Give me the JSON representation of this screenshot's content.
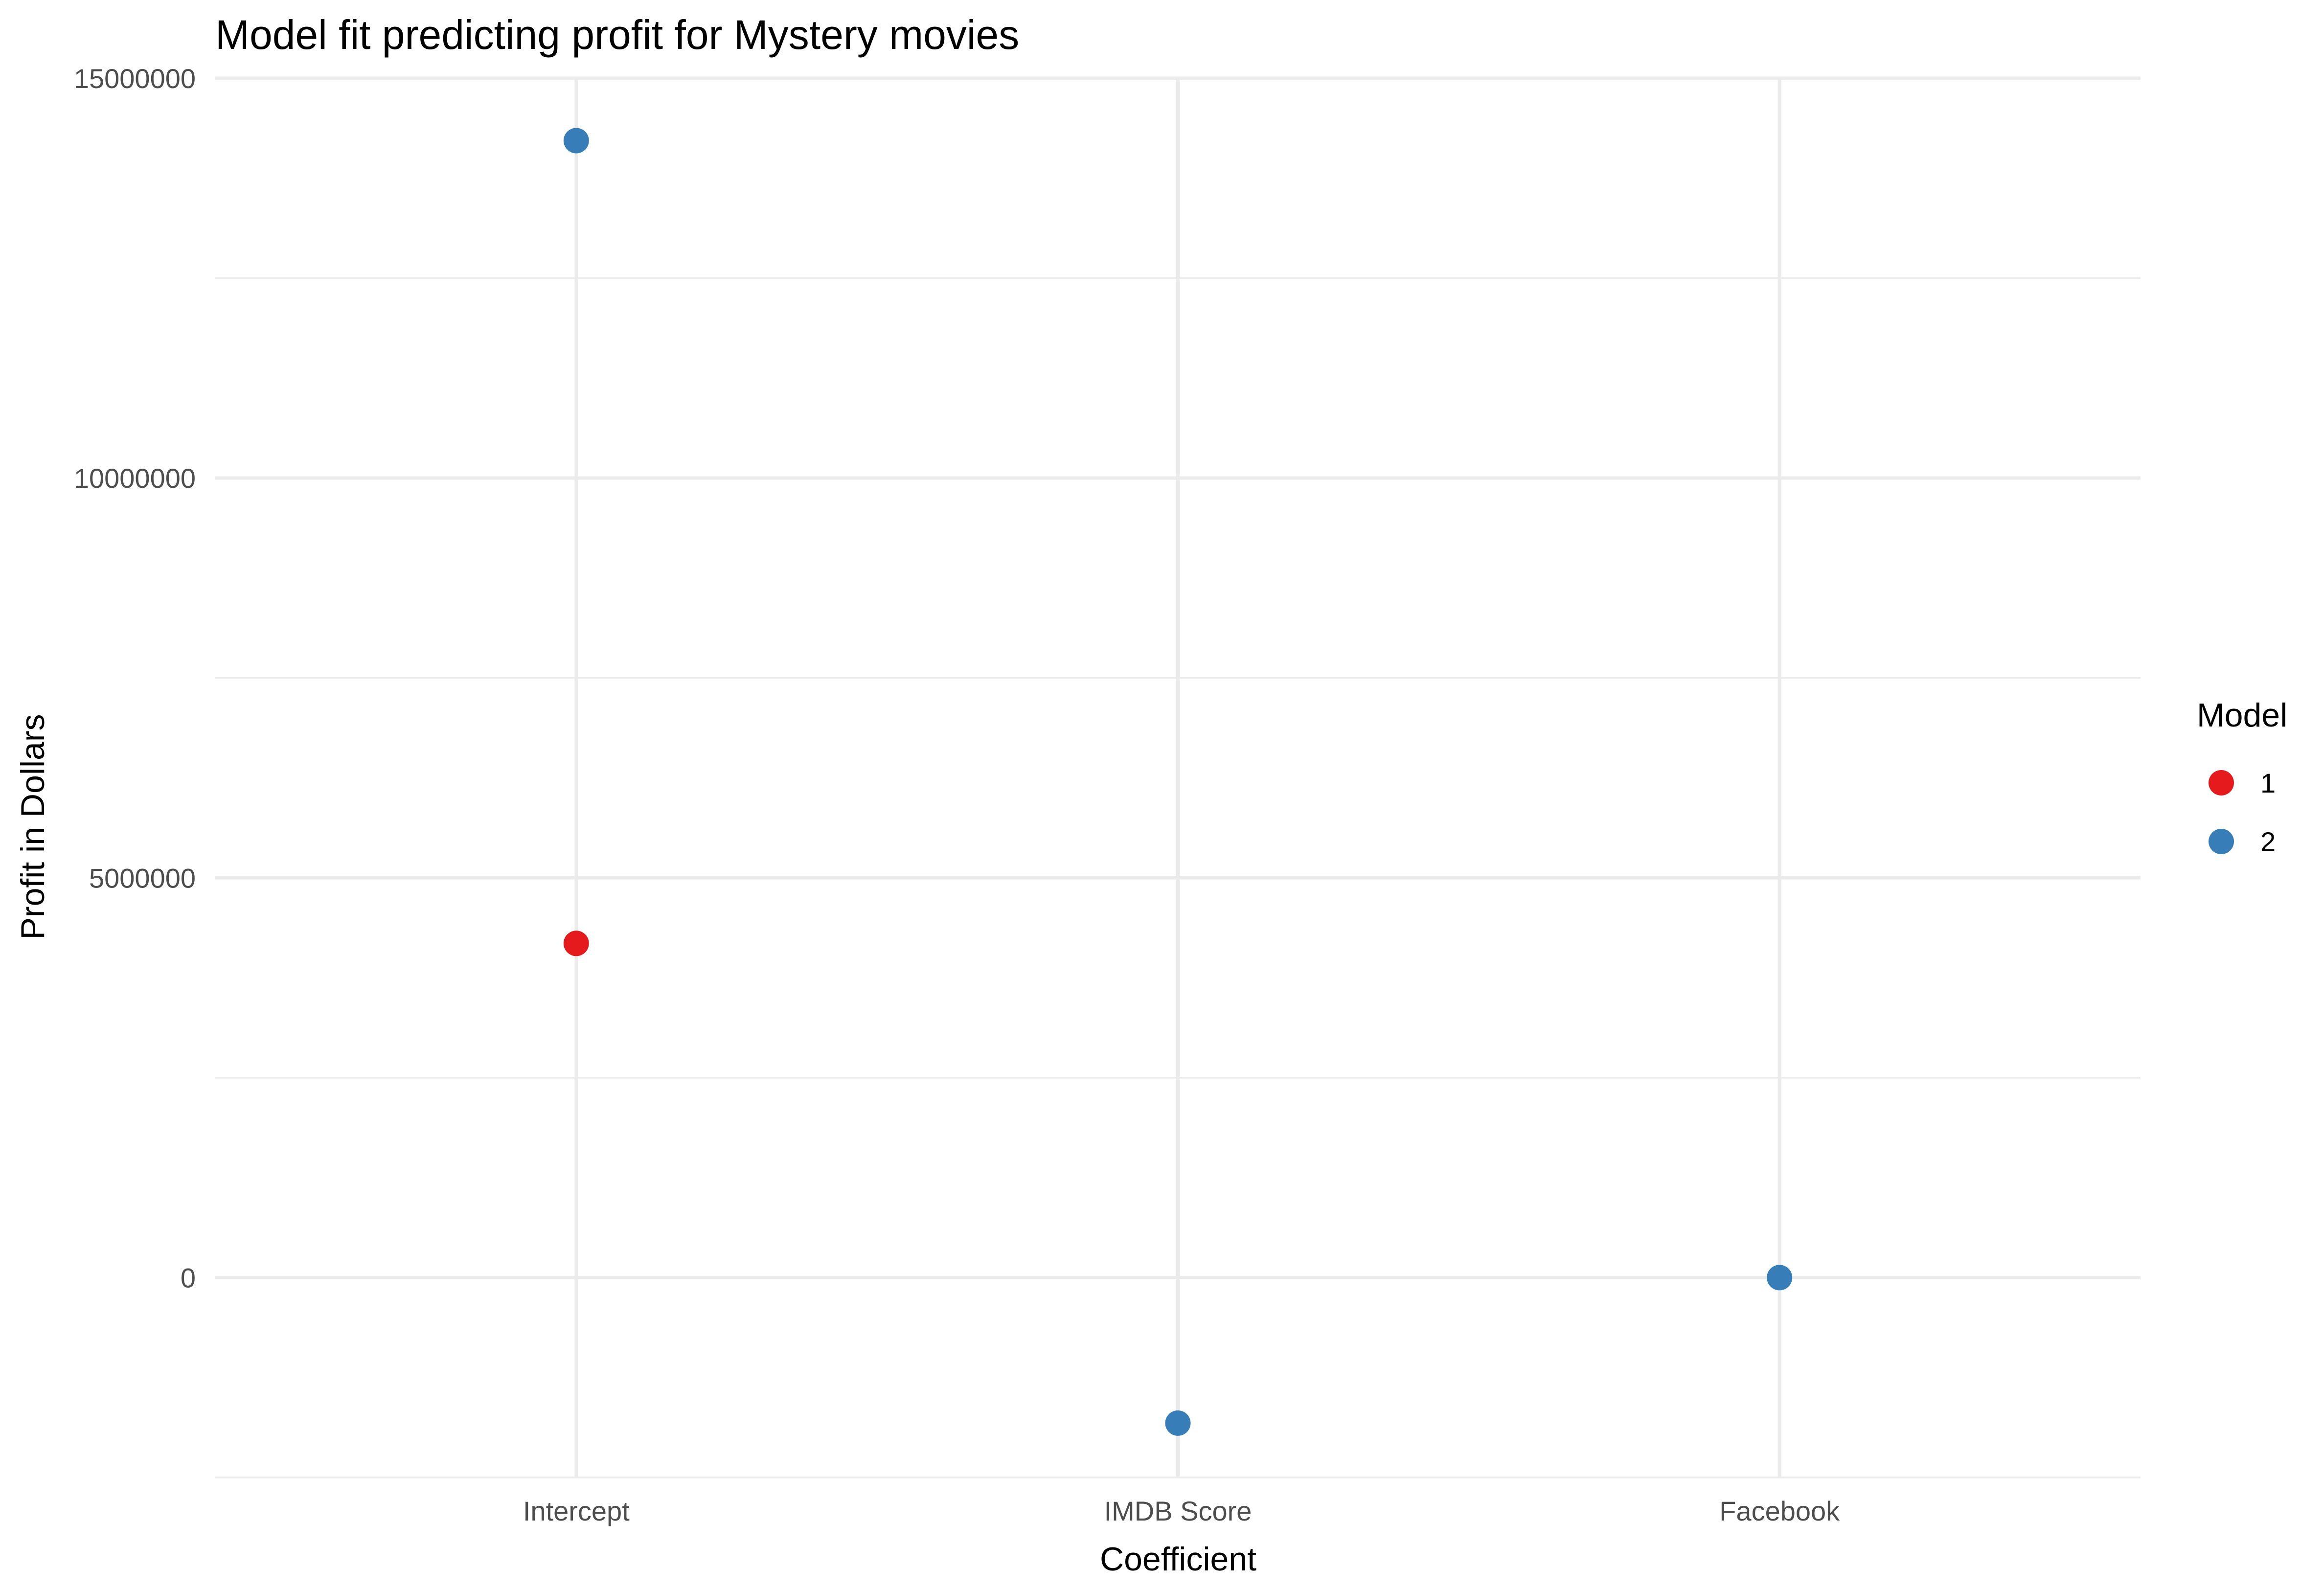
{
  "chart_data": {
    "type": "scatter",
    "title": "Model fit predicting profit for Mystery movies",
    "xlabel": "Coefficient",
    "ylabel": "Profit in Dollars",
    "categories": [
      "Intercept",
      "IMDB Score",
      "Facebook"
    ],
    "y_ticks": [
      0,
      5000000,
      10000000,
      15000000
    ],
    "y_tick_labels": [
      "0",
      "5000000",
      "10000000",
      "15000000"
    ],
    "ylim": [
      -2500000,
      15000000
    ],
    "grid": true,
    "legend": {
      "title": "Model",
      "placement": "right",
      "entries": [
        {
          "label": "1",
          "color": "#e41a1c"
        },
        {
          "label": "2",
          "color": "#377eb8"
        }
      ]
    },
    "series": [
      {
        "name": "1",
        "color": "#e41a1c",
        "points": [
          {
            "x": "Intercept",
            "y": 4180000
          }
        ]
      },
      {
        "name": "2",
        "color": "#377eb8",
        "points": [
          {
            "x": "Intercept",
            "y": 14220000
          },
          {
            "x": "IMDB Score",
            "y": -1820000
          },
          {
            "x": "Facebook",
            "y": 0
          }
        ]
      }
    ]
  }
}
